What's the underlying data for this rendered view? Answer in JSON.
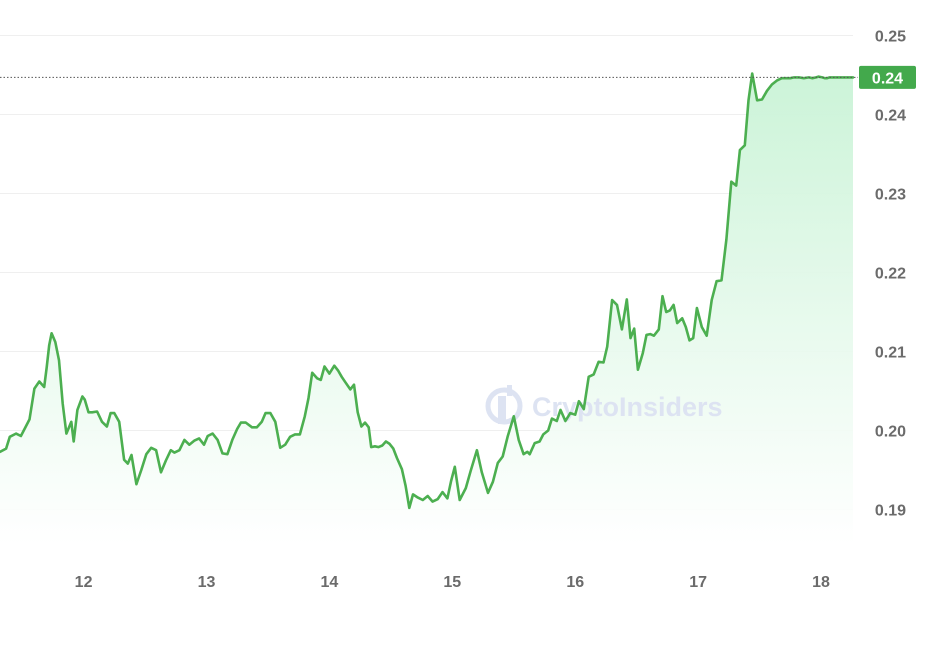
{
  "chart_data": {
    "type": "area",
    "x_ticks": [
      "12",
      "13",
      "14",
      "15",
      "16",
      "17",
      "18"
    ],
    "y_ticks": [
      "0.25",
      "0.24",
      "0.23",
      "0.22",
      "0.21",
      "0.20",
      "0.19"
    ],
    "ylim": [
      0.1855,
      0.2545
    ],
    "xlim": [
      11.32,
      18.26
    ],
    "current_price": "0.24",
    "watermark": "CryptoInsiders",
    "grid": true,
    "legend": "none",
    "colors": {
      "line": "#4caf50",
      "fill_top": "#c9f3d6",
      "label_bg": "#43a94c",
      "grid": "#efefef"
    },
    "series": [
      {
        "x": [
          11.32,
          11.37,
          11.4,
          11.45,
          11.49,
          11.52,
          11.56,
          11.6,
          11.64,
          11.68,
          11.7,
          11.72,
          11.74,
          11.77,
          11.8,
          11.83,
          11.86,
          11.9,
          11.92,
          11.95,
          11.99,
          12.01,
          12.04,
          12.07,
          12.11,
          12.15,
          12.19,
          12.22,
          12.25,
          12.29,
          12.33,
          12.36,
          12.39,
          12.43,
          12.47,
          12.51,
          12.55,
          12.59,
          12.63,
          12.67,
          12.71,
          12.74,
          12.78,
          12.82,
          12.86,
          12.9,
          12.94,
          12.98,
          13.01,
          13.05,
          13.09,
          13.13,
          13.17,
          13.21,
          13.25,
          13.28,
          13.32,
          13.37,
          13.41,
          13.45,
          13.48,
          13.52,
          13.56,
          13.6,
          13.64,
          13.68,
          13.72,
          13.76,
          13.8,
          13.83,
          13.86,
          13.9,
          13.93,
          13.96,
          14.0,
          14.04,
          14.07,
          14.1,
          14.13,
          14.17,
          14.2,
          14.23,
          14.26,
          14.29,
          14.32,
          14.34,
          14.37,
          14.4,
          14.43,
          14.46,
          14.49,
          14.52,
          14.55,
          14.59,
          14.62,
          14.65,
          14.68,
          14.72,
          14.76,
          14.8,
          14.84,
          14.88,
          14.92,
          14.96,
          14.99,
          15.02,
          15.06,
          15.11,
          15.15,
          15.2,
          15.24,
          15.29,
          15.33,
          15.37,
          15.41,
          15.45,
          15.5,
          15.54,
          15.58,
          15.61,
          15.63,
          15.67,
          15.71,
          15.74,
          15.78,
          15.81,
          15.85,
          15.88,
          15.92,
          15.96,
          16.0,
          16.03,
          16.07,
          16.11,
          16.15,
          16.19,
          16.23,
          16.26,
          16.3,
          16.34,
          16.38,
          16.42,
          16.45,
          16.48,
          16.51,
          16.55,
          16.58,
          16.61,
          16.64,
          16.68,
          16.71,
          16.74,
          16.77,
          16.8,
          16.83,
          16.87,
          16.9,
          16.93,
          16.96,
          16.99,
          17.03,
          17.07,
          17.11,
          17.15,
          17.19,
          17.23,
          17.27,
          17.31,
          17.34,
          17.38,
          17.41,
          17.44,
          17.48,
          17.52,
          17.56,
          17.6,
          17.64,
          17.68,
          17.72,
          17.75,
          17.78,
          17.82,
          17.86,
          17.9,
          17.93,
          17.96,
          17.98,
          18.01,
          18.03,
          18.05,
          18.07,
          18.1,
          18.13,
          18.16,
          18.19,
          18.22,
          18.24,
          18.26
        ],
        "y": [
          0.1973,
          0.1977,
          0.1992,
          0.1996,
          0.1993,
          0.2002,
          0.2014,
          0.2053,
          0.2062,
          0.2055,
          0.208,
          0.2108,
          0.2123,
          0.2112,
          0.2089,
          0.2034,
          0.1996,
          0.2011,
          0.1986,
          0.2026,
          0.2043,
          0.2039,
          0.2023,
          0.2023,
          0.2024,
          0.2011,
          0.2005,
          0.2022,
          0.2022,
          0.2011,
          0.1963,
          0.1958,
          0.1969,
          0.1932,
          0.195,
          0.197,
          0.1978,
          0.1975,
          0.1947,
          0.1962,
          0.1975,
          0.1972,
          0.1975,
          0.1988,
          0.1982,
          0.1987,
          0.199,
          0.1982,
          0.1993,
          0.1996,
          0.1988,
          0.1971,
          0.197,
          0.1988,
          0.2002,
          0.201,
          0.201,
          0.2004,
          0.2004,
          0.2011,
          0.2022,
          0.2022,
          0.2011,
          0.1978,
          0.1982,
          0.1992,
          0.1995,
          0.1995,
          0.2018,
          0.2041,
          0.2073,
          0.2066,
          0.2064,
          0.2081,
          0.2072,
          0.2082,
          0.2076,
          0.2068,
          0.2061,
          0.2052,
          0.2058,
          0.2023,
          0.2005,
          0.201,
          0.2004,
          0.1979,
          0.198,
          0.1979,
          0.1981,
          0.1986,
          0.1983,
          0.1977,
          0.1965,
          0.1951,
          0.193,
          0.1902,
          0.1919,
          0.1915,
          0.1912,
          0.1917,
          0.191,
          0.1913,
          0.1922,
          0.1914,
          0.1936,
          0.1954,
          0.1912,
          0.1927,
          0.1949,
          0.1975,
          0.1947,
          0.1921,
          0.1935,
          0.1959,
          0.1967,
          0.1992,
          0.2018,
          0.1988,
          0.197,
          0.1973,
          0.197,
          0.1984,
          0.1986,
          0.1995,
          0.2,
          0.2015,
          0.2012,
          0.2026,
          0.2012,
          0.2022,
          0.202,
          0.2037,
          0.2027,
          0.2068,
          0.2071,
          0.2087,
          0.2086,
          0.2106,
          0.2165,
          0.2159,
          0.2128,
          0.2166,
          0.2117,
          0.2129,
          0.2077,
          0.2098,
          0.2121,
          0.2122,
          0.212,
          0.2128,
          0.217,
          0.215,
          0.2152,
          0.2159,
          0.2136,
          0.2142,
          0.2131,
          0.2114,
          0.2117,
          0.2155,
          0.2131,
          0.212,
          0.2165,
          0.2189,
          0.219,
          0.2242,
          0.2315,
          0.231,
          0.2355,
          0.2361,
          0.2418,
          0.2452,
          0.2418,
          0.2419,
          0.243,
          0.2438,
          0.2443,
          0.2446,
          0.2446,
          0.2446,
          0.2447,
          0.2447,
          0.2446,
          0.2447,
          0.2446,
          0.2447,
          0.2448,
          0.2447,
          0.2446,
          0.2446,
          0.2447,
          0.2447,
          0.2447,
          0.2447,
          0.2447,
          0.2447,
          0.2447,
          0.2447
        ]
      }
    ]
  }
}
